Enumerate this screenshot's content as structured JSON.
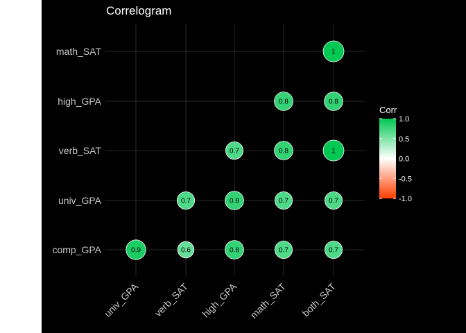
{
  "chart_data": {
    "type": "heatmap",
    "title": "Correlogram",
    "x_categories": [
      "univ_GPA",
      "verb_SAT",
      "high_GPA",
      "math_SAT",
      "both_SAT"
    ],
    "y_categories": [
      "comp_GPA",
      "univ_GPA",
      "verb_SAT",
      "high_GPA",
      "math_SAT"
    ],
    "cells": [
      {
        "x": "univ_GPA",
        "y": "comp_GPA",
        "value": 0.9,
        "label": "0.9"
      },
      {
        "x": "verb_SAT",
        "y": "comp_GPA",
        "value": 0.6,
        "label": "0.6"
      },
      {
        "x": "high_GPA",
        "y": "comp_GPA",
        "value": 0.8,
        "label": "0.8"
      },
      {
        "x": "math_SAT",
        "y": "comp_GPA",
        "value": 0.7,
        "label": "0.7"
      },
      {
        "x": "both_SAT",
        "y": "comp_GPA",
        "value": 0.7,
        "label": "0.7"
      },
      {
        "x": "verb_SAT",
        "y": "univ_GPA",
        "value": 0.7,
        "label": "0.7"
      },
      {
        "x": "high_GPA",
        "y": "univ_GPA",
        "value": 0.8,
        "label": "0.8"
      },
      {
        "x": "math_SAT",
        "y": "univ_GPA",
        "value": 0.7,
        "label": "0.7"
      },
      {
        "x": "both_SAT",
        "y": "univ_GPA",
        "value": 0.7,
        "label": "0.7"
      },
      {
        "x": "high_GPA",
        "y": "verb_SAT",
        "value": 0.7,
        "label": "0.7"
      },
      {
        "x": "math_SAT",
        "y": "verb_SAT",
        "value": 0.8,
        "label": "0.8"
      },
      {
        "x": "both_SAT",
        "y": "verb_SAT",
        "value": 1.0,
        "label": "1"
      },
      {
        "x": "math_SAT",
        "y": "high_GPA",
        "value": 0.8,
        "label": "0.8"
      },
      {
        "x": "both_SAT",
        "y": "high_GPA",
        "value": 0.8,
        "label": "0.8"
      },
      {
        "x": "both_SAT",
        "y": "math_SAT",
        "value": 1.0,
        "label": "1"
      }
    ],
    "legend": {
      "title": "Corr",
      "ticks": [
        "1.0",
        "0.5",
        "0.0",
        "-0.5",
        "-1.0"
      ],
      "range": [
        -1,
        1
      ],
      "position": "right",
      "colors": {
        "high": "#00C853",
        "mid": "#ffffff",
        "low": "#FF3D00"
      }
    },
    "background": "#000000",
    "grid": true
  }
}
